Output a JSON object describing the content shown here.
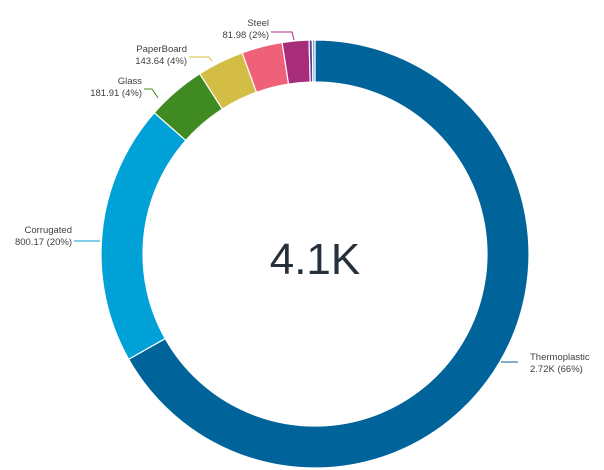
{
  "chart_data": {
    "type": "donut",
    "center_label": "4.1K",
    "series": [
      {
        "name": "Thermoplastic",
        "value": 2720,
        "value_label": "2.72K",
        "percent_label": "66%",
        "color": "#006399"
      },
      {
        "name": "Corrugated",
        "value": 800.17,
        "value_label": "800.17",
        "percent_label": "20%",
        "color": "#00a1d6"
      },
      {
        "name": "Glass",
        "value": 181.91,
        "value_label": "181.91",
        "percent_label": "4%",
        "color": "#3f8b22"
      },
      {
        "name": "PaperBoard",
        "value": 143.64,
        "value_label": "143.64",
        "percent_label": "4%",
        "color": "#d4bd45"
      },
      {
        "name": "",
        "value": 125,
        "color": "#ef6079"
      },
      {
        "name": "Steel",
        "value": 81.98,
        "value_label": "81.98",
        "percent_label": "2%",
        "color": "#a72d7b"
      },
      {
        "name": "",
        "value": 10,
        "color": "#5e3e93"
      },
      {
        "name": "",
        "value": 8,
        "color": "#7fa9d4"
      }
    ]
  }
}
